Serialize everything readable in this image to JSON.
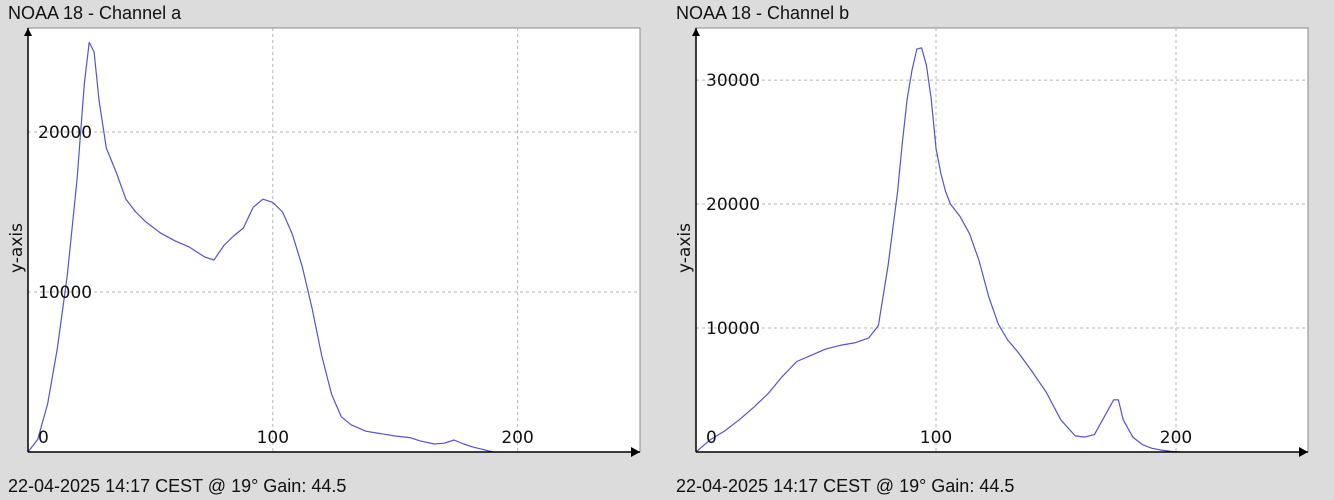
{
  "colors": {
    "background": "#dcdcdc",
    "plot_area": "#ffffff",
    "series_line": "#5454cc",
    "grid": "#b4b4b4",
    "axis": "#000000"
  },
  "chart_data": [
    {
      "type": "line",
      "title": "NOAA 18 - Channel a",
      "footer": "22-04-2025 14:17 CEST @ 19° Gain: 44.5",
      "xlabel": "",
      "ylabel": "y-axis",
      "xlim": [
        0,
        250
      ],
      "ylim": [
        0,
        26500
      ],
      "grid": true,
      "x_ticks": [
        0,
        100,
        200
      ],
      "x_tick_labels": [
        "0",
        "100",
        "200"
      ],
      "y_ticks": [
        10000,
        20000
      ],
      "y_tick_labels": [
        "10000",
        "20000"
      ],
      "series": [
        {
          "x": [
            0,
            4,
            8,
            12,
            16,
            20,
            23,
            25,
            27,
            29,
            32,
            36,
            40,
            44,
            48,
            54,
            60,
            66,
            72,
            76,
            80,
            84,
            88,
            92,
            96,
            100,
            104,
            108,
            112,
            116,
            120,
            124,
            128,
            132,
            138,
            144,
            150,
            156,
            160,
            166,
            170,
            174,
            178,
            182,
            186,
            190
          ],
          "y": [
            0,
            800,
            3000,
            6500,
            11000,
            17000,
            23000,
            25600,
            25000,
            22000,
            19000,
            17500,
            15800,
            15000,
            14400,
            13700,
            13200,
            12800,
            12200,
            12000,
            12900,
            13500,
            14000,
            15300,
            15800,
            15600,
            15000,
            13600,
            11600,
            9000,
            6000,
            3600,
            2200,
            1700,
            1300,
            1150,
            1000,
            900,
            700,
            500,
            550,
            750,
            500,
            300,
            150,
            0
          ]
        }
      ]
    },
    {
      "type": "line",
      "title": "NOAA 18 - Channel b",
      "footer": "22-04-2025 14:17 CEST @ 19° Gain: 44.5",
      "xlabel": "",
      "ylabel": "y-axis",
      "xlim": [
        0,
        255
      ],
      "ylim": [
        0,
        34200
      ],
      "grid": true,
      "x_ticks": [
        0,
        100,
        200
      ],
      "x_tick_labels": [
        "0",
        "100",
        "200"
      ],
      "y_ticks": [
        10000,
        20000,
        30000
      ],
      "y_tick_labels": [
        "10000",
        "20000",
        "30000"
      ],
      "series": [
        {
          "x": [
            0,
            6,
            12,
            18,
            24,
            30,
            36,
            42,
            48,
            54,
            60,
            66,
            72,
            76,
            80,
            84,
            86,
            88,
            90,
            92,
            94,
            96,
            98,
            100,
            102,
            104,
            106,
            108,
            110,
            114,
            118,
            122,
            126,
            130,
            134,
            140,
            146,
            152,
            158,
            162,
            166,
            170,
            174,
            176,
            178,
            182,
            186,
            190,
            194,
            198,
            202
          ],
          "y": [
            0,
            1000,
            1700,
            2600,
            3600,
            4700,
            6100,
            7300,
            7800,
            8300,
            8600,
            8800,
            9200,
            10200,
            15000,
            21000,
            25000,
            28500,
            30800,
            32500,
            32600,
            31200,
            28500,
            24500,
            22500,
            21000,
            20000,
            19500,
            19000,
            17600,
            15400,
            12500,
            10300,
            9000,
            8100,
            6500,
            4800,
            2600,
            1300,
            1200,
            1400,
            2800,
            4200,
            4200,
            2600,
            1200,
            600,
            300,
            150,
            50,
            0
          ]
        }
      ]
    }
  ]
}
